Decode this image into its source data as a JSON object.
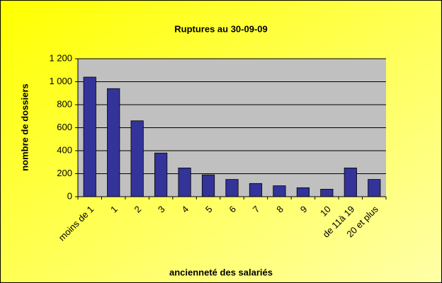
{
  "chart_data": {
    "type": "bar",
    "title": "Ruptures au 30-09-09",
    "x_label": "ancienneté des salariés",
    "y_label": "nombre de dossiers",
    "categories": [
      "moins de 1",
      "1",
      "2",
      "3",
      "4",
      "5",
      "6",
      "7",
      "8",
      "9",
      "10",
      "de 11à 19",
      "20 et plus"
    ],
    "values": [
      1040,
      940,
      660,
      380,
      250,
      190,
      150,
      115,
      95,
      78,
      65,
      250,
      150
    ],
    "color": "#333399",
    "ylim": [
      0,
      1200
    ],
    "yticks": [
      0,
      200,
      400,
      600,
      800,
      {
        "value": 1000,
        "label": "1 000"
      },
      {
        "value": 1200,
        "label": "1 200"
      }
    ],
    "grid": true
  }
}
